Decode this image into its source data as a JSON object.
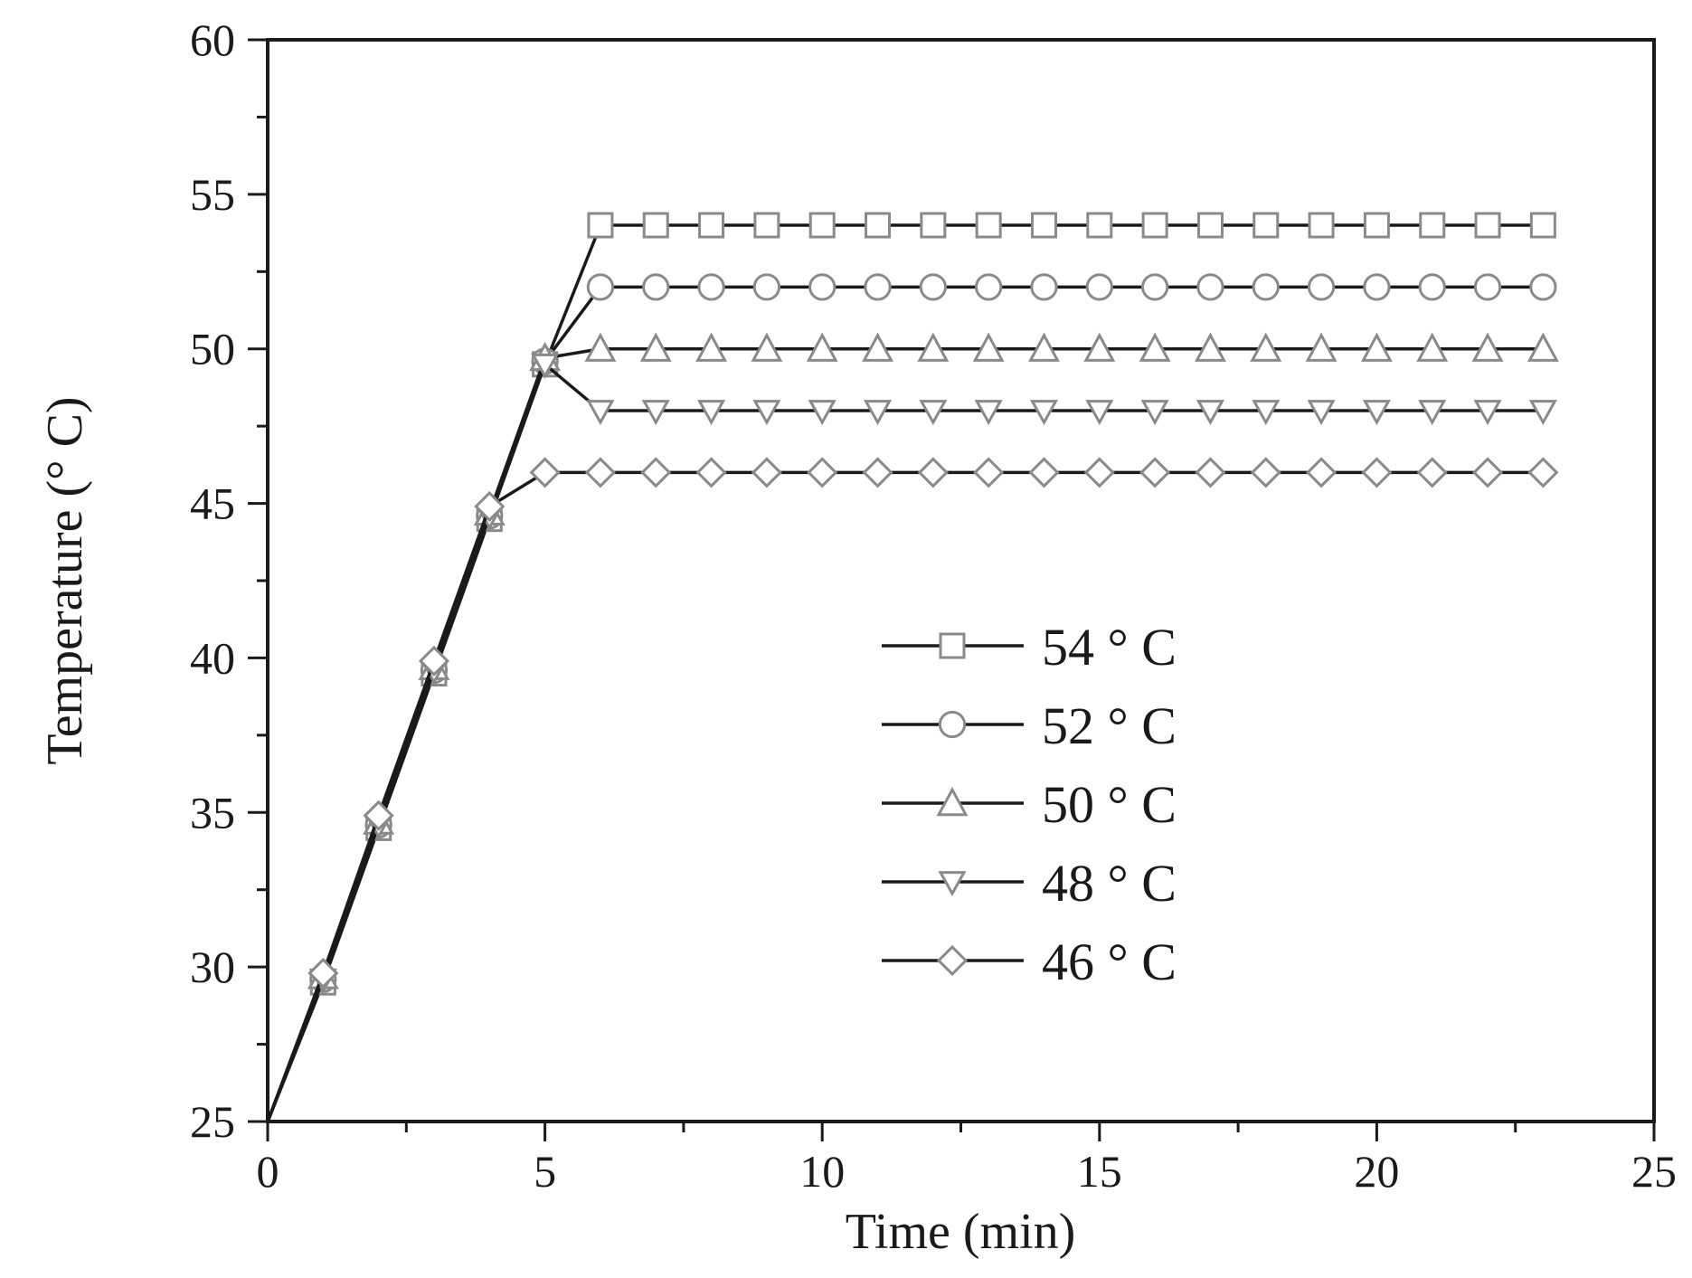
{
  "chart_data": {
    "type": "line",
    "xlabel": "Time (min)",
    "ylabel": "Temperature (° C)",
    "xlim": [
      0,
      25
    ],
    "ylim": [
      25,
      60
    ],
    "x_ticks": [
      0,
      5,
      10,
      15,
      20,
      25
    ],
    "y_ticks": [
      25,
      30,
      35,
      40,
      45,
      50,
      55,
      60
    ],
    "grid": false,
    "legend_position": "center-right",
    "series": [
      {
        "name": "54 ° C",
        "marker": "square",
        "color": "#888888",
        "x": [
          0,
          1,
          2,
          3,
          4,
          5,
          6,
          7,
          8,
          9,
          10,
          11,
          12,
          13,
          14,
          15,
          16,
          17,
          18,
          19,
          20,
          21,
          22,
          23
        ],
        "y": [
          25,
          29.5,
          34.5,
          39.5,
          44.5,
          49.5,
          54,
          54,
          54,
          54,
          54,
          54,
          54,
          54,
          54,
          54,
          54,
          54,
          54,
          54,
          54,
          54,
          54,
          54
        ]
      },
      {
        "name": "52 ° C",
        "marker": "circle",
        "color": "#888888",
        "x": [
          0,
          1,
          2,
          3,
          4,
          5,
          6,
          7,
          8,
          9,
          10,
          11,
          12,
          13,
          14,
          15,
          16,
          17,
          18,
          19,
          20,
          21,
          22,
          23
        ],
        "y": [
          25,
          29.6,
          34.6,
          39.6,
          44.6,
          49.6,
          52,
          52,
          52,
          52,
          52,
          52,
          52,
          52,
          52,
          52,
          52,
          52,
          52,
          52,
          52,
          52,
          52,
          52
        ]
      },
      {
        "name": "50 ° C",
        "marker": "triangle-up",
        "color": "#888888",
        "x": [
          0,
          1,
          2,
          3,
          4,
          5,
          6,
          7,
          8,
          9,
          10,
          11,
          12,
          13,
          14,
          15,
          16,
          17,
          18,
          19,
          20,
          21,
          22,
          23
        ],
        "y": [
          25,
          29.7,
          34.7,
          39.7,
          44.7,
          49.7,
          50,
          50,
          50,
          50,
          50,
          50,
          50,
          50,
          50,
          50,
          50,
          50,
          50,
          50,
          50,
          50,
          50,
          50
        ]
      },
      {
        "name": "48 ° C",
        "marker": "triangle-down",
        "color": "#888888",
        "x": [
          0,
          1,
          2,
          3,
          4,
          5,
          6,
          7,
          8,
          9,
          10,
          11,
          12,
          13,
          14,
          15,
          16,
          17,
          18,
          19,
          20,
          21,
          22,
          23
        ],
        "y": [
          25,
          29.6,
          34.6,
          39.6,
          44.6,
          49.5,
          48,
          48,
          48,
          48,
          48,
          48,
          48,
          48,
          48,
          48,
          48,
          48,
          48,
          48,
          48,
          48,
          48,
          48
        ]
      },
      {
        "name": "46 ° C",
        "marker": "diamond",
        "color": "#888888",
        "x": [
          0,
          1,
          2,
          3,
          4,
          5,
          6,
          7,
          8,
          9,
          10,
          11,
          12,
          13,
          14,
          15,
          16,
          17,
          18,
          19,
          20,
          21,
          22,
          23
        ],
        "y": [
          25,
          29.8,
          34.9,
          39.9,
          44.9,
          46,
          46,
          46,
          46,
          46,
          46,
          46,
          46,
          46,
          46,
          46,
          46,
          46,
          46,
          46,
          46,
          46,
          46,
          46
        ]
      }
    ]
  }
}
